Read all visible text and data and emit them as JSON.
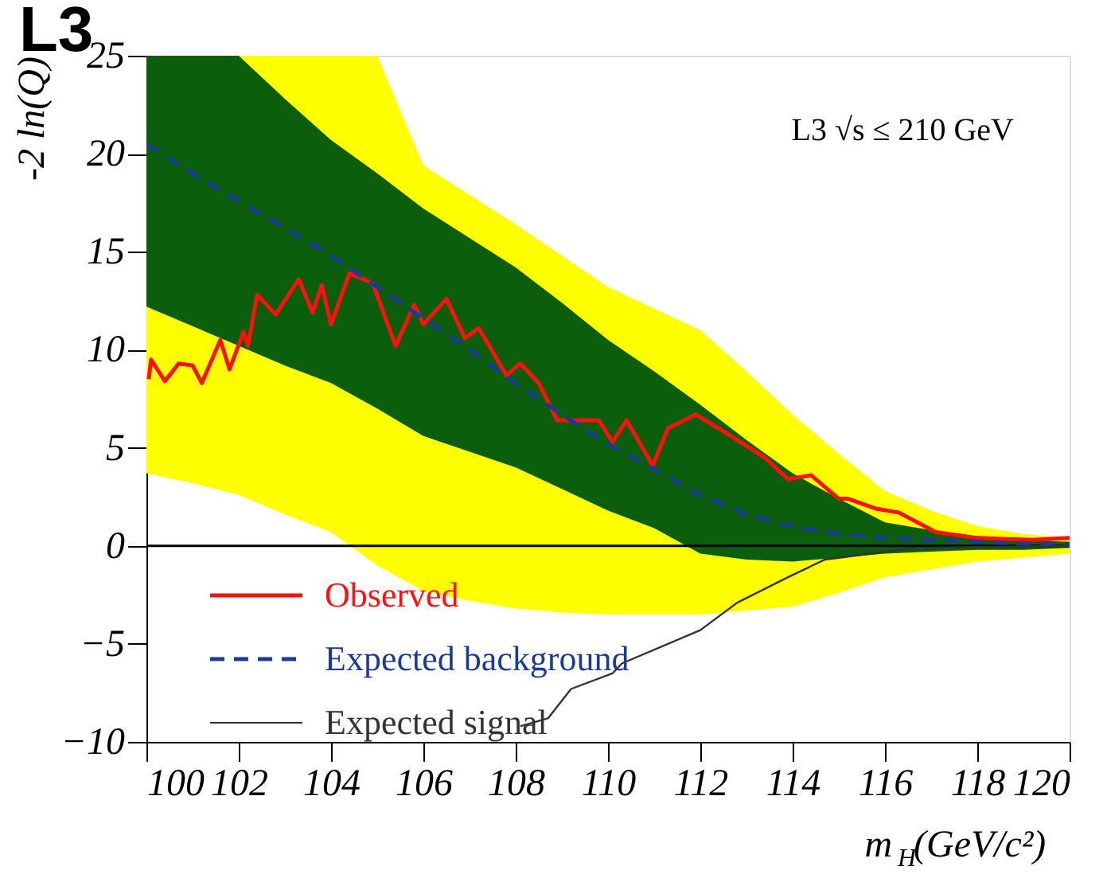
{
  "chart_data": {
    "type": "line",
    "title": "L3",
    "xlabel": "m$_{H}$(GeV/c²)",
    "ylabel": "-2 ln(Q)",
    "annotations": [
      "L3 √s ≤ 210 GeV"
    ],
    "x": [
      100,
      101,
      102,
      103,
      104,
      105,
      106,
      107,
      108,
      109,
      110,
      111,
      112,
      113,
      114,
      115,
      116,
      117,
      118,
      119,
      120
    ],
    "series": [
      {
        "color": "#ffff00",
        "values": [
          null,
          null,
          null,
          null,
          null,
          null,
          null,
          null,
          null,
          null,
          null,
          null,
          null,
          null,
          null,
          null,
          null,
          null,
          null,
          null,
          null
        ],
        "upper": [
          25,
          25,
          25,
          25,
          25,
          25,
          19.4,
          17.9,
          16.4,
          14.8,
          13.2,
          12.1,
          11.0,
          8.9,
          6.7,
          4.7,
          2.8,
          1.8,
          1.0,
          0.6,
          0.4
        ],
        "lower": [
          3.7,
          3.2,
          2.6,
          1.6,
          0.7,
          -1.0,
          -2.3,
          -2.8,
          -3.2,
          -3.4,
          -3.5,
          -3.5,
          -3.5,
          -3.3,
          -3.1,
          -2.4,
          -1.6,
          -1.2,
          -0.8,
          -0.6,
          -0.4
        ]
      },
      {
        "color": "#0b5e0b",
        "values": [
          null,
          null,
          null,
          null,
          null,
          null,
          null,
          null,
          null,
          null,
          null,
          null,
          null,
          null,
          null,
          null,
          null,
          null,
          null,
          null,
          null
        ],
        "upper": [
          25,
          25,
          25,
          22.8,
          20.7,
          19.0,
          17.2,
          15.7,
          14.2,
          12.4,
          10.5,
          8.9,
          7.2,
          5.4,
          3.7,
          2.4,
          1.2,
          0.8,
          0.5,
          0.3,
          0.2
        ],
        "lower": [
          12.2,
          11.2,
          10.2,
          9.2,
          8.3,
          7.0,
          5.6,
          4.8,
          4.0,
          2.9,
          1.8,
          0.9,
          -0.4,
          -0.7,
          -0.8,
          -0.6,
          -0.4,
          -0.3,
          -0.2,
          -0.2,
          -0.1
        ]
      },
      {
        "name": "Observed",
        "color": "#ff1010",
        "x": [
          100.05,
          100.1,
          100.4,
          100.7,
          101.0,
          101.2,
          101.6,
          101.8,
          102.1,
          102.2,
          102.4,
          102.8,
          103.3,
          103.6,
          103.8,
          104.0,
          104.4,
          104.9,
          105.4,
          105.8,
          106.0,
          106.5,
          106.9,
          107.2,
          107.8,
          108.1,
          108.5,
          108.9,
          109.8,
          110.1,
          110.4,
          110.97,
          111.3,
          111.9,
          112.6,
          113.4,
          113.9,
          114.4,
          115.0,
          115.2,
          115.8,
          116.3,
          117.1,
          118.0,
          119.2,
          120.0
        ],
        "values": [
          8.5,
          9.5,
          8.4,
          9.3,
          9.2,
          8.3,
          10.5,
          9.0,
          10.9,
          10.2,
          12.8,
          11.8,
          13.6,
          11.9,
          13.3,
          11.3,
          13.9,
          13.4,
          10.2,
          12.3,
          11.3,
          12.6,
          10.6,
          11.1,
          8.7,
          9.3,
          8.3,
          6.4,
          6.4,
          5.3,
          6.4,
          4.1,
          6.0,
          6.7,
          5.7,
          4.5,
          3.4,
          3.6,
          2.4,
          2.4,
          1.9,
          1.7,
          0.7,
          0.4,
          0.3,
          0.4
        ]
      },
      {
        "name": "Expected background",
        "line_style": "dashed",
        "color": "#1a3a9a",
        "values": [
          20.5,
          19.0,
          17.6,
          16.2,
          14.8,
          13.2,
          11.6,
          10.0,
          8.3,
          6.7,
          5.2,
          3.9,
          2.6,
          1.6,
          1.0,
          0.6,
          0.4,
          0.3,
          0.2,
          0.1,
          0.1
        ]
      },
      {
        "name": "Expected signal",
        "line_style": "solid",
        "color": "#333333",
        "x": [
          108.1,
          108.7,
          109.2,
          110.1,
          110.3,
          112.0,
          112.8,
          113.9,
          114.7,
          116.7,
          120.0
        ],
        "values": [
          -9.2,
          -8.8,
          -7.3,
          -6.5,
          -6.0,
          -4.3,
          -2.9,
          -1.6,
          -0.7,
          -0.1,
          0
        ]
      }
    ],
    "ref_lines": [
      {
        "axis": "y",
        "value": 0,
        "color": "#000000"
      }
    ],
    "xlim": [
      100,
      120
    ],
    "xticks": [
      100,
      102,
      104,
      106,
      108,
      110,
      112,
      114,
      116,
      118,
      120
    ],
    "ylim": [
      -10,
      25
    ],
    "yticks": [
      -10,
      -5,
      0,
      5,
      10,
      15,
      20,
      25
    ],
    "legend": "bottom left",
    "line_style": "solid",
    "grid": false
  }
}
